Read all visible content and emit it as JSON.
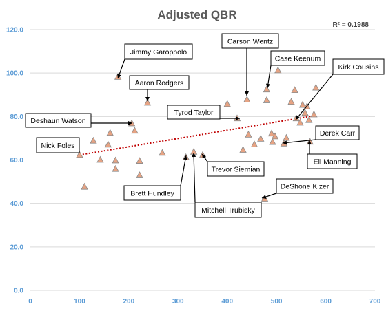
{
  "chart_data": {
    "type": "scatter",
    "title": "Adjusted QBR",
    "annotation": "R² = 0.1988",
    "xlim": [
      0,
      700
    ],
    "ylim": [
      0,
      120
    ],
    "x_ticks": [
      "0",
      "100",
      "200",
      "300",
      "400",
      "500",
      "600",
      "700"
    ],
    "y_ticks": [
      "0.0",
      "20.0",
      "40.0",
      "60.0",
      "80.0",
      "100.0",
      "120.0"
    ],
    "grid": "horizontal",
    "marker": "triangle",
    "colors": {
      "marker_fill": "#e6a383",
      "marker_stroke": "#8c8c8c",
      "trendline": "#c00000",
      "tick_text": "#5b9bd5",
      "gridline": "#d9d9d9"
    },
    "trendline": {
      "style": "dotted",
      "points": [
        [
          100,
          62.3
        ],
        [
          580,
          80.5
        ]
      ]
    },
    "points": [
      {
        "x": 100,
        "y": 62.3
      },
      {
        "x": 110,
        "y": 47.6
      },
      {
        "x": 128,
        "y": 68.8
      },
      {
        "x": 142,
        "y": 60
      },
      {
        "x": 158,
        "y": 67
      },
      {
        "x": 162,
        "y": 72.4
      },
      {
        "x": 173,
        "y": 59.7
      },
      {
        "x": 173,
        "y": 55.8
      },
      {
        "x": 178,
        "y": 98.2
      },
      {
        "x": 206,
        "y": 76.8
      },
      {
        "x": 212,
        "y": 73.4
      },
      {
        "x": 222,
        "y": 59.5
      },
      {
        "x": 222,
        "y": 52.9
      },
      {
        "x": 238,
        "y": 86.3
      },
      {
        "x": 268,
        "y": 63.2
      },
      {
        "x": 316,
        "y": 61.2
      },
      {
        "x": 332,
        "y": 63.7
      },
      {
        "x": 350,
        "y": 62.2
      },
      {
        "x": 400,
        "y": 85.7
      },
      {
        "x": 420,
        "y": 79.1
      },
      {
        "x": 432,
        "y": 64.6
      },
      {
        "x": 440,
        "y": 87.7
      },
      {
        "x": 443,
        "y": 71.6
      },
      {
        "x": 455,
        "y": 67.1
      },
      {
        "x": 468,
        "y": 69.7
      },
      {
        "x": 476,
        "y": 42.1
      },
      {
        "x": 480,
        "y": 92.4
      },
      {
        "x": 480,
        "y": 87.4
      },
      {
        "x": 490,
        "y": 72.1
      },
      {
        "x": 492,
        "y": 68.2
      },
      {
        "x": 497,
        "y": 70.8
      },
      {
        "x": 503,
        "y": 101.2
      },
      {
        "x": 515,
        "y": 67.5
      },
      {
        "x": 520,
        "y": 70.1
      },
      {
        "x": 530,
        "y": 86.7
      },
      {
        "x": 537,
        "y": 92.1
      },
      {
        "x": 540,
        "y": 79.1
      },
      {
        "x": 548,
        "y": 77.1
      },
      {
        "x": 553,
        "y": 85.3
      },
      {
        "x": 558,
        "y": 81.6
      },
      {
        "x": 562,
        "y": 84.6
      },
      {
        "x": 566,
        "y": 78.3
      },
      {
        "x": 568,
        "y": 68.3
      },
      {
        "x": 576,
        "y": 80.9
      },
      {
        "x": 580,
        "y": 93.2
      }
    ],
    "annotations": [
      {
        "text": "Jimmy Garoppolo",
        "x": 178,
        "y": 98.2
      },
      {
        "text": "Aaron Rodgers",
        "x": 238,
        "y": 86.3
      },
      {
        "text": "Carson Wentz",
        "x": 440,
        "y": 87.7
      },
      {
        "text": "Case Keenum",
        "x": 480,
        "y": 92.4
      },
      {
        "text": "Kirk Cousins",
        "x": 540,
        "y": 79.1
      },
      {
        "text": "Tyrod Taylor",
        "x": 420,
        "y": 79.1
      },
      {
        "text": "Deshaun Watson",
        "x": 206,
        "y": 76.8
      },
      {
        "text": "Derek Carr",
        "x": 515,
        "y": 67.5
      },
      {
        "text": "Nick Foles",
        "x": 100,
        "y": 62.3
      },
      {
        "text": "Eli Manning",
        "x": 568,
        "y": 68.3
      },
      {
        "text": "Trevor Siemian",
        "x": 350,
        "y": 62.2
      },
      {
        "text": "Brett Hundley",
        "x": 316,
        "y": 61.2
      },
      {
        "text": "DeShone Kizer",
        "x": 476,
        "y": 42.1
      },
      {
        "text": "Mitchell Trubisky",
        "x": 332,
        "y": 63.7
      }
    ]
  }
}
